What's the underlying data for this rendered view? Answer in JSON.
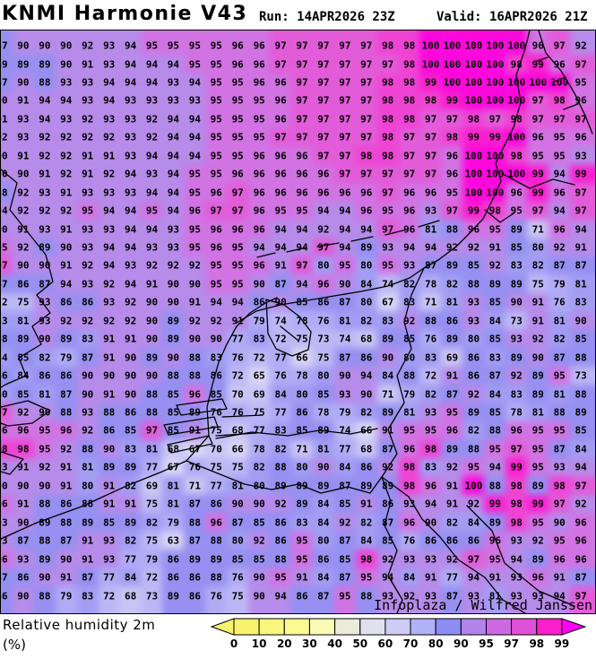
{
  "header": {
    "title": "KNMI Harmonie V43",
    "run_label": "Run: 14APR2026 23Z",
    "valid_label": "Valid: 16APR2026 21Z"
  },
  "watermark": "Infoplaza / Wilfred Janssen",
  "footer": {
    "label": "Relative humidity 2m",
    "unit": "(%)"
  },
  "legend": {
    "ticks": [
      "0",
      "10",
      "20",
      "30",
      "40",
      "50",
      "60",
      "70",
      "80",
      "90",
      "95",
      "97",
      "98",
      "99"
    ],
    "segment_colors": [
      "#f8f36e",
      "#f9f67e",
      "#fafa92",
      "#fcfbb6",
      "#ebebdc",
      "#e1e1ee",
      "#cdcdf5",
      "#b1b1f8",
      "#8d8df4",
      "#b183eb",
      "#cb69e2",
      "#e151d7",
      "#fb1ecb"
    ],
    "left_arrow_color": "#f8f36e",
    "right_arrow_color": "#ff00fa"
  },
  "chart_data": {
    "type": "heatmap",
    "title": "KNMI Harmonie V43",
    "parameter": "Relative humidity 2m (%)",
    "run": "14APR2026 23Z",
    "valid": "16APR2026 21Z",
    "grid_rows": 31,
    "grid_cols": 28,
    "legend_ticks": [
      0,
      10,
      20,
      30,
      40,
      50,
      60,
      70,
      80,
      90,
      95,
      97,
      98,
      99
    ],
    "palette": [
      [
        67,
        "#d8d5f5"
      ],
      [
        71,
        "#c9c5f4"
      ],
      [
        75,
        "#bcb8f5"
      ],
      [
        79,
        "#b0abf5"
      ],
      [
        84,
        "#a29df3"
      ],
      [
        89,
        "#9590f1"
      ],
      [
        94,
        "#b68bea"
      ],
      [
        96,
        "#d173e3"
      ],
      [
        97,
        "#e25cd9"
      ],
      [
        98,
        "#ef43d4"
      ],
      [
        99,
        "#f91fd0"
      ]
    ],
    "palette_max": "#fd08dc",
    "values": [
      [
        87,
        90,
        90,
        90,
        92,
        93,
        94,
        95,
        95,
        95,
        95,
        96,
        96,
        97,
        97,
        97,
        97,
        97,
        98,
        98,
        100,
        100,
        100,
        100,
        100,
        96,
        97,
        92
      ],
      [
        89,
        89,
        89,
        90,
        91,
        93,
        94,
        94,
        94,
        95,
        95,
        96,
        96,
        97,
        97,
        97,
        97,
        97,
        97,
        98,
        100,
        100,
        100,
        100,
        98,
        99,
        96,
        97
      ],
      [
        87,
        90,
        88,
        93,
        93,
        94,
        94,
        94,
        93,
        94,
        95,
        95,
        96,
        96,
        97,
        97,
        97,
        97,
        98,
        98,
        99,
        100,
        100,
        100,
        100,
        100,
        100,
        95
      ],
      [
        90,
        91,
        94,
        94,
        93,
        94,
        93,
        93,
        93,
        93,
        95,
        95,
        95,
        96,
        97,
        97,
        97,
        97,
        98,
        98,
        98,
        99,
        100,
        100,
        100,
        97,
        98,
        96
      ],
      [
        91,
        93,
        94,
        93,
        92,
        93,
        93,
        92,
        94,
        94,
        95,
        95,
        95,
        96,
        97,
        97,
        97,
        97,
        98,
        98,
        97,
        97,
        98,
        97,
        98,
        97,
        97,
        97
      ],
      [
        92,
        93,
        92,
        92,
        92,
        92,
        93,
        92,
        94,
        94,
        95,
        95,
        95,
        97,
        97,
        97,
        97,
        97,
        98,
        97,
        97,
        98,
        99,
        99,
        100,
        96,
        95,
        96
      ],
      [
        90,
        91,
        92,
        92,
        91,
        91,
        93,
        94,
        94,
        94,
        95,
        95,
        96,
        96,
        96,
        97,
        97,
        98,
        98,
        97,
        97,
        96,
        100,
        100,
        98,
        95,
        95,
        93
      ],
      [
        90,
        90,
        91,
        92,
        91,
        92,
        94,
        93,
        94,
        95,
        95,
        96,
        96,
        96,
        96,
        96,
        97,
        97,
        97,
        97,
        97,
        96,
        100,
        100,
        100,
        99,
        94,
        99
      ],
      [
        88,
        92,
        93,
        91,
        93,
        93,
        93,
        94,
        94,
        95,
        96,
        97,
        96,
        96,
        96,
        96,
        96,
        96,
        97,
        96,
        96,
        95,
        100,
        100,
        96,
        99,
        96,
        97
      ],
      [
        94,
        92,
        92,
        92,
        95,
        94,
        94,
        95,
        94,
        96,
        97,
        97,
        96,
        95,
        95,
        94,
        94,
        96,
        95,
        96,
        93,
        97,
        99,
        98,
        95,
        97,
        94,
        97
      ],
      [
        90,
        91,
        93,
        91,
        93,
        93,
        94,
        94,
        93,
        95,
        96,
        96,
        96,
        94,
        94,
        92,
        94,
        94,
        97,
        96,
        81,
        88,
        96,
        95,
        89,
        71,
        96,
        94
      ],
      [
        95,
        92,
        89,
        90,
        93,
        94,
        94,
        93,
        93,
        95,
        96,
        95,
        94,
        94,
        94,
        97,
        94,
        89,
        93,
        94,
        94,
        92,
        92,
        91,
        85,
        80,
        92,
        91
      ],
      [
        97,
        90,
        90,
        91,
        92,
        94,
        93,
        92,
        92,
        92,
        95,
        95,
        96,
        91,
        97,
        80,
        95,
        80,
        95,
        93,
        87,
        89,
        85,
        92,
        83,
        82,
        87,
        87
      ],
      [
        87,
        86,
        87,
        94,
        93,
        92,
        94,
        91,
        90,
        90,
        95,
        95,
        90,
        87,
        94,
        96,
        90,
        84,
        74,
        82,
        78,
        82,
        88,
        89,
        89,
        75,
        79,
        81
      ],
      [
        72,
        75,
        93,
        86,
        86,
        93,
        92,
        90,
        90,
        91,
        94,
        94,
        86,
        90,
        85,
        86,
        87,
        80,
        67,
        83,
        71,
        81,
        93,
        85,
        90,
        91,
        76,
        83
      ],
      [
        83,
        81,
        93,
        92,
        92,
        92,
        92,
        90,
        89,
        92,
        92,
        91,
        79,
        74,
        78,
        76,
        81,
        82,
        83,
        92,
        88,
        86,
        93,
        84,
        73,
        91,
        81,
        90
      ],
      [
        88,
        89,
        90,
        89,
        83,
        91,
        91,
        90,
        89,
        90,
        90,
        77,
        83,
        72,
        75,
        73,
        74,
        68,
        89,
        85,
        76,
        89,
        80,
        85,
        93,
        92,
        82,
        85
      ],
      [
        84,
        85,
        82,
        79,
        87,
        91,
        90,
        89,
        90,
        88,
        83,
        76,
        72,
        77,
        66,
        75,
        87,
        86,
        90,
        80,
        83,
        69,
        86,
        83,
        89,
        90,
        87,
        88
      ],
      [
        86,
        84,
        86,
        86,
        90,
        90,
        90,
        90,
        88,
        88,
        86,
        72,
        65,
        76,
        78,
        80,
        90,
        94,
        84,
        88,
        72,
        91,
        86,
        87,
        92,
        89,
        95,
        73
      ],
      [
        80,
        85,
        81,
        87,
        90,
        91,
        90,
        88,
        85,
        96,
        85,
        70,
        69,
        84,
        80,
        85,
        93,
        90,
        71,
        79,
        82,
        87,
        92,
        84,
        83,
        89,
        81,
        88
      ],
      [
        97,
        92,
        90,
        88,
        93,
        88,
        86,
        88,
        85,
        89,
        76,
        76,
        75,
        77,
        86,
        78,
        79,
        82,
        89,
        81,
        93,
        95,
        89,
        85,
        78,
        81,
        88,
        89
      ],
      [
        96,
        96,
        95,
        96,
        92,
        86,
        85,
        97,
        85,
        91,
        75,
        68,
        77,
        83,
        85,
        89,
        74,
        66,
        91,
        95,
        95,
        96,
        82,
        88,
        96,
        95,
        95,
        85
      ],
      [
        98,
        98,
        95,
        92,
        88,
        90,
        83,
        81,
        68,
        67,
        70,
        66,
        78,
        82,
        71,
        81,
        77,
        68,
        87,
        96,
        98,
        89,
        88,
        95,
        97,
        95,
        87,
        84
      ],
      [
        93,
        91,
        92,
        91,
        81,
        89,
        89,
        77,
        67,
        76,
        75,
        75,
        82,
        88,
        80,
        90,
        84,
        86,
        92,
        98,
        83,
        92,
        95,
        94,
        99,
        95,
        93,
        94
      ],
      [
        90,
        90,
        90,
        91,
        80,
        91,
        82,
        69,
        81,
        71,
        77,
        81,
        80,
        89,
        89,
        89,
        87,
        89,
        89,
        98,
        96,
        91,
        100,
        88,
        98,
        89,
        98,
        97
      ],
      [
        96,
        91,
        88,
        86,
        88,
        91,
        91,
        75,
        81,
        87,
        86,
        90,
        90,
        92,
        89,
        84,
        85,
        91,
        86,
        93,
        94,
        91,
        92,
        99,
        98,
        99,
        97,
        92
      ],
      [
        93,
        90,
        89,
        88,
        89,
        85,
        89,
        82,
        79,
        88,
        96,
        87,
        85,
        86,
        83,
        84,
        92,
        82,
        87,
        96,
        90,
        82,
        84,
        89,
        98,
        95,
        90,
        96
      ],
      [
        93,
        87,
        88,
        87,
        91,
        93,
        82,
        75,
        63,
        87,
        88,
        80,
        92,
        86,
        95,
        80,
        87,
        84,
        85,
        76,
        86,
        86,
        86,
        96,
        93,
        92,
        95,
        96
      ],
      [
        96,
        93,
        89,
        90,
        91,
        93,
        77,
        79,
        86,
        89,
        89,
        85,
        85,
        88,
        95,
        86,
        85,
        98,
        92,
        93,
        93,
        92,
        97,
        95,
        94,
        89,
        96,
        96
      ],
      [
        87,
        86,
        90,
        91,
        87,
        77,
        84,
        72,
        86,
        86,
        88,
        76,
        90,
        95,
        91,
        84,
        87,
        95,
        94,
        84,
        91,
        77,
        94,
        91,
        93,
        96,
        91,
        87
      ],
      [
        86,
        90,
        88,
        79,
        83,
        72,
        68,
        73,
        89,
        86,
        76,
        75,
        90,
        94,
        86,
        87,
        95,
        88,
        93,
        92,
        93,
        87,
        93,
        81,
        93,
        93,
        94,
        97
      ]
    ]
  }
}
